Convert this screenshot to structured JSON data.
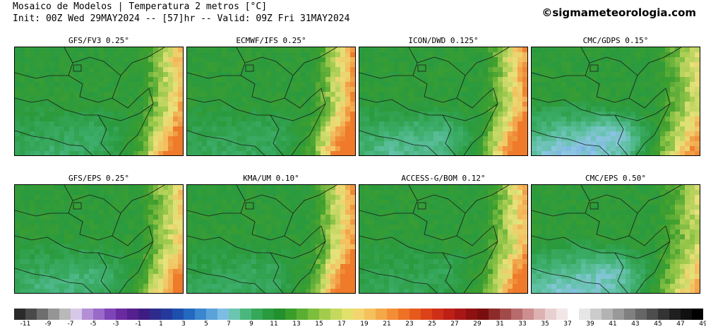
{
  "header": {
    "title_line_1": "Mosaico de Modelos | Temperatura 2 metros [°C]",
    "title_line_2": "Init: 00Z Wed 29MAY2024 -- [57]hr -- Valid: 09Z Fri 31MAY2024",
    "credit": "©sigmameteorologia.com"
  },
  "panels": [
    {
      "title": "GFS/FV3 0.25°",
      "coolness": 0.35,
      "warm_east": 0.9
    },
    {
      "title": "ECMWF/IFS 0.25°",
      "coolness": 0.3,
      "warm_east": 1.0
    },
    {
      "title": "ICON/DWD 0.125°",
      "coolness": 0.55,
      "warm_east": 1.0
    },
    {
      "title": "CMC/GDPS 0.15°",
      "coolness": 0.9,
      "warm_east": 0.7
    },
    {
      "title": "GFS/EPS 0.25°",
      "coolness": 0.45,
      "warm_east": 0.8
    },
    {
      "title": "KMA/UM 0.10°",
      "coolness": 0.3,
      "warm_east": 1.0
    },
    {
      "title": "ACCESS-G/BOM 0.12°",
      "coolness": 0.25,
      "warm_east": 0.9
    },
    {
      "title": "CMC/EPS 0.50°",
      "coolness": 0.8,
      "warm_east": 0.6
    }
  ],
  "legend": {
    "colors": [
      "#2b2b2b",
      "#4a4a4a",
      "#6e6e6e",
      "#959595",
      "#b9b9b9",
      "#d8c8e8",
      "#b48fd6",
      "#9a6ac8",
      "#7e45b6",
      "#6a2aa0",
      "#55208f",
      "#3d1d82",
      "#2e2b8c",
      "#23399b",
      "#1e4fae",
      "#2369c0",
      "#3a86cf",
      "#5aa2da",
      "#7dbde3",
      "#6cc5b0",
      "#4cb77d",
      "#35a85a",
      "#2a9a3e",
      "#22902c",
      "#3a9e2b",
      "#5aaf32",
      "#7dbf3c",
      "#a2cd4c",
      "#c5d95e",
      "#e2e16c",
      "#f2d56e",
      "#f5c15d",
      "#f5a848",
      "#f38d36",
      "#ee7226",
      "#e65a1c",
      "#dc4319",
      "#cf2f17",
      "#be1f16",
      "#a81616",
      "#8f1010",
      "#7a0d0d",
      "#8d2a2a",
      "#a24a4a",
      "#b76b6b",
      "#cc8e8e",
      "#ddb2b2",
      "#e9d0d0",
      "#f2e6e6",
      "#ffffff",
      "#e6e6e6",
      "#cccccc",
      "#b3b3b3",
      "#999999",
      "#808080",
      "#666666",
      "#4d4d4d",
      "#333333",
      "#1f1f1f",
      "#101010",
      "#000000"
    ],
    "labels": [
      "-11",
      "-9",
      "-7",
      "-5",
      "-3",
      "-1",
      "1",
      "3",
      "5",
      "7",
      "9",
      "11",
      "13",
      "15",
      "17",
      "19",
      "21",
      "23",
      "25",
      "27",
      "29",
      "31",
      "33",
      "35",
      "37",
      "39",
      "41",
      "43",
      "45",
      "47",
      "49"
    ]
  }
}
